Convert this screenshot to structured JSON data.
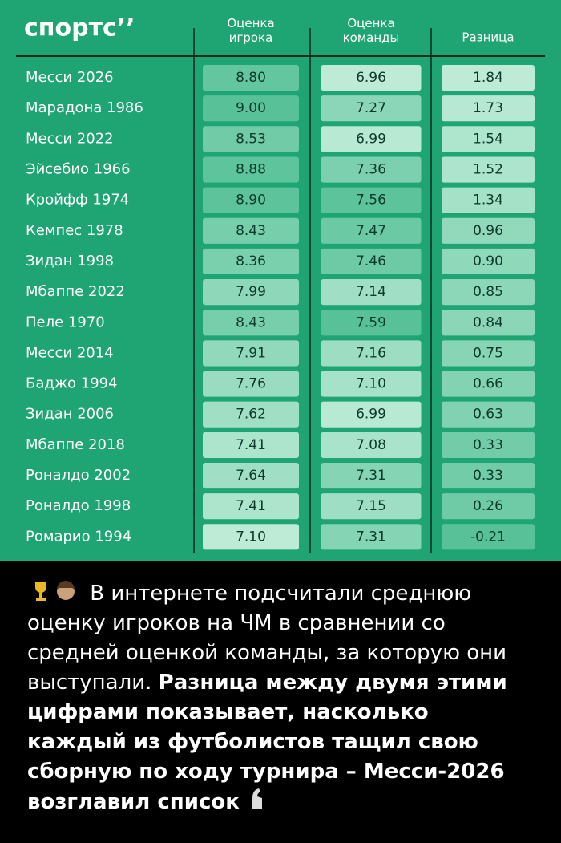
{
  "logo": "спортс’’",
  "table": {
    "headers": [
      "Оценка игрока",
      "Оценка команды",
      "Разница"
    ],
    "rows": [
      {
        "name": "Месси 2026",
        "player": "8.80",
        "team": "6.96",
        "diff": "1.84"
      },
      {
        "name": "Марадона 1986",
        "player": "9.00",
        "team": "7.27",
        "diff": "1.73"
      },
      {
        "name": "Месси 2022",
        "player": "8.53",
        "team": "6.99",
        "diff": "1.54"
      },
      {
        "name": "Эйсебио 1966",
        "player": "8.88",
        "team": "7.36",
        "diff": "1.52"
      },
      {
        "name": "Кройфф 1974",
        "player": "8.90",
        "team": "7.56",
        "diff": "1.34"
      },
      {
        "name": "Кемпес 1978",
        "player": "8.43",
        "team": "7.47",
        "diff": "0.96"
      },
      {
        "name": "Зидан 1998",
        "player": "8.36",
        "team": "7.46",
        "diff": "0.90"
      },
      {
        "name": "Мбаппе 2022",
        "player": "7.99",
        "team": "7.14",
        "diff": "0.85"
      },
      {
        "name": "Пеле 1970",
        "player": "8.43",
        "team": "7.59",
        "diff": "0.84"
      },
      {
        "name": "Месси 2014",
        "player": "7.91",
        "team": "7.16",
        "diff": "0.75"
      },
      {
        "name": "Баджо 1994",
        "player": "7.76",
        "team": "7.10",
        "diff": "0.66"
      },
      {
        "name": "Зидан 2006",
        "player": "7.62",
        "team": "6.99",
        "diff": "0.63"
      },
      {
        "name": "Мбаппе 2018",
        "player": "7.41",
        "team": "7.08",
        "diff": "0.33"
      },
      {
        "name": "Роналдо 2002",
        "player": "7.64",
        "team": "7.31",
        "diff": "0.33"
      },
      {
        "name": "Роналдо 1998",
        "player": "7.41",
        "team": "7.15",
        "diff": "0.26"
      },
      {
        "name": "Ромарио 1994",
        "player": "7.10",
        "team": "7.31",
        "diff": "-0.21"
      }
    ]
  },
  "caption": {
    "normal": "В интернете подсчитали среднюю оценку игроков на ЧМ в сравнении со средней оценкой команды, за которую они выступали.",
    "bold": "Разница между двумя этими цифрами показывает, насколько каждый из футболистов тащил свою сборную по ходу турнира – Месси-2026 возглавил список"
  }
}
